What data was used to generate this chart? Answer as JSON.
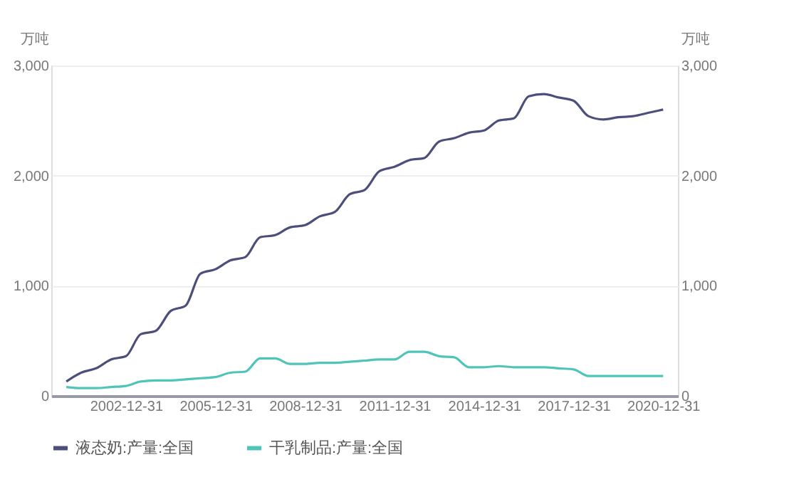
{
  "chart_data": {
    "type": "line",
    "x": [
      "2000-12-31",
      "2001-06-30",
      "2001-12-31",
      "2002-06-30",
      "2002-12-31",
      "2003-06-30",
      "2003-12-31",
      "2004-06-30",
      "2004-12-31",
      "2005-06-30",
      "2005-12-31",
      "2006-06-30",
      "2006-12-31",
      "2007-06-30",
      "2007-12-31",
      "2008-06-30",
      "2008-12-31",
      "2009-06-30",
      "2009-12-31",
      "2010-06-30",
      "2010-12-31",
      "2011-06-30",
      "2011-12-31",
      "2012-06-30",
      "2012-12-31",
      "2013-06-30",
      "2013-12-31",
      "2014-06-30",
      "2014-12-31",
      "2015-06-30",
      "2015-12-31",
      "2016-06-30",
      "2016-12-31",
      "2017-06-30",
      "2017-12-31",
      "2018-06-30",
      "2018-12-31",
      "2019-06-30",
      "2019-12-31",
      "2020-06-30",
      "2020-12-31"
    ],
    "series": [
      {
        "name": "液态奶:产量:全国",
        "color": "#4b4f7a",
        "values": [
          130,
          210,
          250,
          330,
          360,
          560,
          590,
          770,
          820,
          1110,
          1150,
          1230,
          1260,
          1440,
          1460,
          1530,
          1550,
          1630,
          1670,
          1830,
          1870,
          2040,
          2080,
          2140,
          2160,
          2310,
          2340,
          2390,
          2410,
          2500,
          2520,
          2720,
          2740,
          2710,
          2680,
          2540,
          2510,
          2530,
          2540,
          2570,
          2600
        ]
      },
      {
        "name": "干乳制品:产量:全国",
        "color": "#4fc4b8",
        "values": [
          80,
          70,
          70,
          80,
          90,
          130,
          140,
          140,
          150,
          160,
          170,
          210,
          220,
          340,
          340,
          290,
          290,
          300,
          300,
          310,
          320,
          330,
          330,
          400,
          400,
          360,
          350,
          260,
          260,
          270,
          260,
          260,
          260,
          250,
          240,
          180,
          180,
          180,
          180,
          180,
          180
        ]
      }
    ],
    "xlim": [
      "2000-06-30",
      "2021-06-30"
    ],
    "xticks": [
      {
        "value": "2002-12-31",
        "label": "2002-12-31"
      },
      {
        "value": "2005-12-31",
        "label": "2005-12-31"
      },
      {
        "value": "2008-12-31",
        "label": "2008-12-31"
      },
      {
        "value": "2011-12-31",
        "label": "2011-12-31"
      },
      {
        "value": "2014-12-31",
        "label": "2014-12-31"
      },
      {
        "value": "2017-12-31",
        "label": "2017-12-31"
      },
      {
        "value": "2020-12-31",
        "label": "2020-12-31"
      }
    ],
    "ylabel": "万吨",
    "y2label": "万吨",
    "ylim": [
      0,
      3000
    ],
    "yticks": [
      0,
      {
        "value": 1000,
        "label": "1,000"
      },
      {
        "value": 2000,
        "label": "2,000"
      },
      {
        "value": 3000,
        "label": "3,000"
      }
    ],
    "y2lim": [
      0,
      3000
    ],
    "y2ticks": [
      0,
      {
        "value": 1000,
        "label": "1,000"
      },
      {
        "value": 2000,
        "label": "2,000"
      },
      {
        "value": 3000,
        "label": "3,000"
      }
    ],
    "grid": "y",
    "legend": "bottom",
    "marker": "none",
    "line_style": "solid"
  }
}
